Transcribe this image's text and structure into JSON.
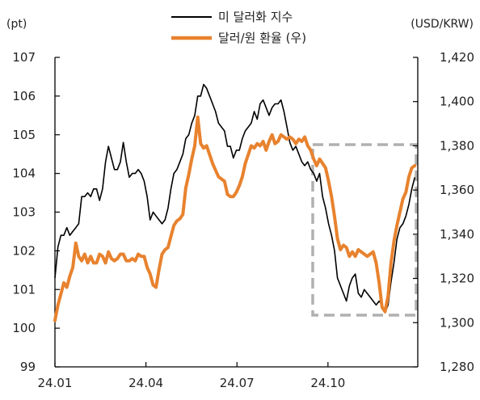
{
  "chart_data": {
    "type": "line",
    "left_unit": "(pt)",
    "right_unit": "(USD/KRW)",
    "x_ticks": [
      "24.01",
      "24.04",
      "24.07",
      "24.10"
    ],
    "y_left": {
      "min": 99,
      "max": 107,
      "ticks": [
        "99",
        "100",
        "101",
        "102",
        "103",
        "104",
        "105",
        "106",
        "107"
      ]
    },
    "y_right": {
      "min": 1280,
      "max": 1420,
      "ticks": [
        "1,280",
        "1,300",
        "1,320",
        "1,340",
        "1,360",
        "1,380",
        "1,400",
        "1,420"
      ]
    },
    "legend_position": "top-center",
    "highlight_box": {
      "x_from": "24.08",
      "x_to": "24.10",
      "style": "dashed",
      "color": "#b0b0b0"
    },
    "series": [
      {
        "name": "미 달러화 지수",
        "axis": "left",
        "color": "#000000",
        "values": [
          [
            0.0,
            101.3
          ],
          [
            0.5,
            102.1
          ],
          [
            1.0,
            102.4
          ],
          [
            1.5,
            102.4
          ],
          [
            2.0,
            102.6
          ],
          [
            2.5,
            102.4
          ],
          [
            3.0,
            102.5
          ],
          [
            3.5,
            102.6
          ],
          [
            4.0,
            102.7
          ],
          [
            4.5,
            103.4
          ],
          [
            5.0,
            103.4
          ],
          [
            5.5,
            103.5
          ],
          [
            6.0,
            103.4
          ],
          [
            6.5,
            103.6
          ],
          [
            7.0,
            103.6
          ],
          [
            7.5,
            103.3
          ],
          [
            8.0,
            103.6
          ],
          [
            8.5,
            104.3
          ],
          [
            9.0,
            104.7
          ],
          [
            9.5,
            104.4
          ],
          [
            10.0,
            104.1
          ],
          [
            10.5,
            104.1
          ],
          [
            11.0,
            104.3
          ],
          [
            11.5,
            104.8
          ],
          [
            12.0,
            104.3
          ],
          [
            12.5,
            103.9
          ],
          [
            13.0,
            104.0
          ],
          [
            13.5,
            104.0
          ],
          [
            14.0,
            104.1
          ],
          [
            14.5,
            104.0
          ],
          [
            15.0,
            103.8
          ],
          [
            15.5,
            103.4
          ],
          [
            16.0,
            102.8
          ],
          [
            16.5,
            103.0
          ],
          [
            17.0,
            102.9
          ],
          [
            17.5,
            102.8
          ],
          [
            18.0,
            102.7
          ],
          [
            18.5,
            102.8
          ],
          [
            19.0,
            103.1
          ],
          [
            19.5,
            103.6
          ],
          [
            20.0,
            104.0
          ],
          [
            20.5,
            104.1
          ],
          [
            21.0,
            104.3
          ],
          [
            21.5,
            104.5
          ],
          [
            22.0,
            104.9
          ],
          [
            22.5,
            105.0
          ],
          [
            23.0,
            105.3
          ],
          [
            23.5,
            105.5
          ],
          [
            24.0,
            106.0
          ],
          [
            24.5,
            106.0
          ],
          [
            25.0,
            106.3
          ],
          [
            25.5,
            106.2
          ],
          [
            26.0,
            106.0
          ],
          [
            26.5,
            105.8
          ],
          [
            27.0,
            105.6
          ],
          [
            27.5,
            105.3
          ],
          [
            28.0,
            105.2
          ],
          [
            28.5,
            105.1
          ],
          [
            29.0,
            104.7
          ],
          [
            29.5,
            104.7
          ],
          [
            30.0,
            104.4
          ],
          [
            30.5,
            104.6
          ],
          [
            31.0,
            104.6
          ],
          [
            31.5,
            104.9
          ],
          [
            32.0,
            105.1
          ],
          [
            32.5,
            105.2
          ],
          [
            33.0,
            105.3
          ],
          [
            33.5,
            105.6
          ],
          [
            34.0,
            105.4
          ],
          [
            34.5,
            105.8
          ],
          [
            35.0,
            105.9
          ],
          [
            35.5,
            105.7
          ],
          [
            36.0,
            105.5
          ],
          [
            36.5,
            105.7
          ],
          [
            37.0,
            105.8
          ],
          [
            37.5,
            105.8
          ],
          [
            38.0,
            105.9
          ],
          [
            38.5,
            105.6
          ],
          [
            39.0,
            105.2
          ],
          [
            39.5,
            104.8
          ],
          [
            40.0,
            104.6
          ],
          [
            40.5,
            104.7
          ],
          [
            41.0,
            104.5
          ],
          [
            41.5,
            104.3
          ],
          [
            42.0,
            104.2
          ],
          [
            42.5,
            104.3
          ],
          [
            43.0,
            104.1
          ],
          [
            43.5,
            104.0
          ],
          [
            44.0,
            103.8
          ],
          [
            44.5,
            104.0
          ],
          [
            45.0,
            103.4
          ],
          [
            45.5,
            103.1
          ],
          [
            46.0,
            102.7
          ],
          [
            46.5,
            102.4
          ],
          [
            47.0,
            102.0
          ],
          [
            47.5,
            101.3
          ],
          [
            48.0,
            101.1
          ],
          [
            48.5,
            100.9
          ],
          [
            49.0,
            100.7
          ],
          [
            49.5,
            101.1
          ],
          [
            50.0,
            101.3
          ],
          [
            50.5,
            101.4
          ],
          [
            51.0,
            100.9
          ],
          [
            51.5,
            100.8
          ],
          [
            52.0,
            101.0
          ],
          [
            52.5,
            100.9
          ],
          [
            53.0,
            100.8
          ],
          [
            53.5,
            100.7
          ],
          [
            54.0,
            100.6
          ],
          [
            54.5,
            100.7
          ],
          [
            55.0,
            100.6
          ],
          [
            55.5,
            100.4
          ],
          [
            56.0,
            100.6
          ],
          [
            56.5,
            101.2
          ],
          [
            57.0,
            101.7
          ],
          [
            57.5,
            102.3
          ],
          [
            58.0,
            102.6
          ],
          [
            58.5,
            102.7
          ],
          [
            59.0,
            102.9
          ],
          [
            59.5,
            103.2
          ],
          [
            60.0,
            103.6
          ],
          [
            60.5,
            103.9
          ]
        ]
      },
      {
        "name": "달러/원 환율 (우)",
        "axis": "right",
        "color": "#E8822E",
        "values": [
          [
            0.0,
            1301
          ],
          [
            0.5,
            1308
          ],
          [
            1.0,
            1313
          ],
          [
            1.5,
            1318
          ],
          [
            2.0,
            1316
          ],
          [
            2.5,
            1321
          ],
          [
            3.0,
            1325
          ],
          [
            3.5,
            1336
          ],
          [
            4.0,
            1330
          ],
          [
            4.5,
            1328
          ],
          [
            5.0,
            1331
          ],
          [
            5.5,
            1327
          ],
          [
            6.0,
            1330
          ],
          [
            6.5,
            1327
          ],
          [
            7.0,
            1327
          ],
          [
            7.5,
            1331
          ],
          [
            8.0,
            1330
          ],
          [
            8.5,
            1327
          ],
          [
            9.0,
            1332
          ],
          [
            9.5,
            1329
          ],
          [
            10.0,
            1328
          ],
          [
            10.5,
            1329
          ],
          [
            11.0,
            1331
          ],
          [
            11.5,
            1331
          ],
          [
            12.0,
            1328
          ],
          [
            12.5,
            1328
          ],
          [
            13.0,
            1329
          ],
          [
            13.5,
            1328
          ],
          [
            14.0,
            1331
          ],
          [
            14.5,
            1330
          ],
          [
            15.0,
            1330
          ],
          [
            15.5,
            1325
          ],
          [
            16.0,
            1322
          ],
          [
            16.5,
            1317
          ],
          [
            17.0,
            1316
          ],
          [
            17.5,
            1324
          ],
          [
            18.0,
            1331
          ],
          [
            18.5,
            1333
          ],
          [
            19.0,
            1334
          ],
          [
            19.5,
            1339
          ],
          [
            20.0,
            1344
          ],
          [
            20.5,
            1346
          ],
          [
            21.0,
            1347
          ],
          [
            21.5,
            1349
          ],
          [
            22.0,
            1361
          ],
          [
            22.5,
            1367
          ],
          [
            23.0,
            1374
          ],
          [
            23.5,
            1380
          ],
          [
            24.0,
            1393
          ],
          [
            24.5,
            1381
          ],
          [
            25.0,
            1379
          ],
          [
            25.5,
            1380
          ],
          [
            26.0,
            1376
          ],
          [
            26.5,
            1372
          ],
          [
            27.0,
            1369
          ],
          [
            27.5,
            1366
          ],
          [
            28.0,
            1365
          ],
          [
            28.5,
            1364
          ],
          [
            29.0,
            1358
          ],
          [
            29.5,
            1357
          ],
          [
            30.0,
            1357
          ],
          [
            30.5,
            1359
          ],
          [
            31.0,
            1362
          ],
          [
            31.5,
            1366
          ],
          [
            32.0,
            1372
          ],
          [
            32.5,
            1376
          ],
          [
            33.0,
            1380
          ],
          [
            33.5,
            1379
          ],
          [
            34.0,
            1381
          ],
          [
            34.5,
            1380
          ],
          [
            35.0,
            1382
          ],
          [
            35.5,
            1378
          ],
          [
            36.0,
            1382
          ],
          [
            36.5,
            1385
          ],
          [
            37.0,
            1381
          ],
          [
            37.5,
            1382
          ],
          [
            38.0,
            1385
          ],
          [
            38.5,
            1384
          ],
          [
            39.0,
            1383
          ],
          [
            39.5,
            1384
          ],
          [
            40.0,
            1383
          ],
          [
            40.5,
            1381
          ],
          [
            41.0,
            1383
          ],
          [
            41.5,
            1382
          ],
          [
            42.0,
            1384
          ],
          [
            42.5,
            1380
          ],
          [
            43.0,
            1378
          ],
          [
            43.5,
            1374
          ],
          [
            44.0,
            1371
          ],
          [
            44.5,
            1374
          ],
          [
            45.0,
            1372
          ],
          [
            45.5,
            1370
          ],
          [
            46.0,
            1364
          ],
          [
            46.5,
            1357
          ],
          [
            47.0,
            1348
          ],
          [
            47.5,
            1338
          ],
          [
            48.0,
            1333
          ],
          [
            48.5,
            1335
          ],
          [
            49.0,
            1334
          ],
          [
            49.5,
            1330
          ],
          [
            50.0,
            1332
          ],
          [
            50.5,
            1330
          ],
          [
            51.0,
            1333
          ],
          [
            51.5,
            1332
          ],
          [
            52.0,
            1331
          ],
          [
            52.5,
            1330
          ],
          [
            53.0,
            1331
          ],
          [
            53.5,
            1332
          ],
          [
            54.0,
            1327
          ],
          [
            54.5,
            1318
          ],
          [
            55.0,
            1307
          ],
          [
            55.5,
            1305
          ],
          [
            56.0,
            1312
          ],
          [
            56.5,
            1327
          ],
          [
            57.0,
            1337
          ],
          [
            57.5,
            1344
          ],
          [
            58.0,
            1350
          ],
          [
            58.5,
            1356
          ],
          [
            59.0,
            1359
          ],
          [
            59.5,
            1366
          ],
          [
            60.0,
            1370
          ],
          [
            60.5,
            1371
          ]
        ]
      }
    ]
  }
}
